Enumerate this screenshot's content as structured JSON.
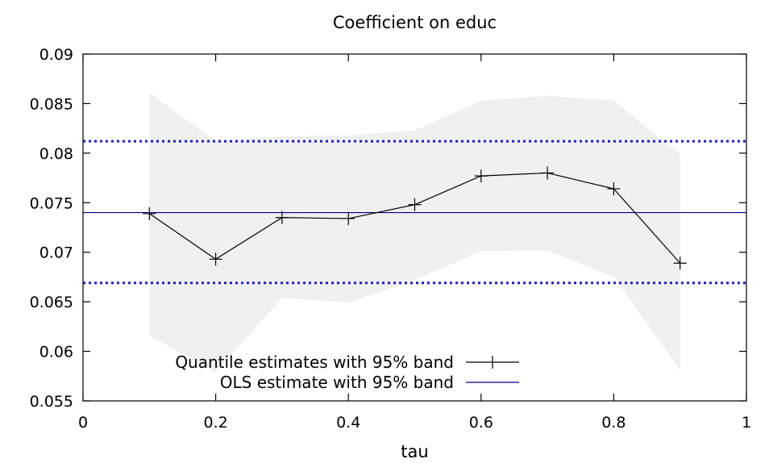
{
  "chart_data": {
    "type": "line",
    "title": "Coefficient on educ",
    "xlabel": "tau",
    "ylabel": "",
    "xlim": [
      0,
      1
    ],
    "ylim": [
      0.055,
      0.09
    ],
    "xticks": [
      0,
      0.2,
      0.4,
      0.6,
      0.8,
      1
    ],
    "xtick_labels": [
      "0",
      "0.2",
      "0.4",
      "0.6",
      "0.8",
      "1"
    ],
    "yticks": [
      0.055,
      0.06,
      0.065,
      0.07,
      0.075,
      0.08,
      0.085,
      0.09
    ],
    "ytick_labels": [
      "0.055",
      "0.06",
      "0.065",
      "0.07",
      "0.075",
      "0.08",
      "0.085",
      "0.09"
    ],
    "grid": false,
    "legend_position": "bottom-center",
    "series": [
      {
        "name": "Quantile estimates with 95% band",
        "x": [
          0.1,
          0.2,
          0.3,
          0.4,
          0.5,
          0.6,
          0.7,
          0.8,
          0.9
        ],
        "y": [
          0.0739,
          0.0693,
          0.0735,
          0.0734,
          0.0748,
          0.0777,
          0.078,
          0.0764,
          0.0689
        ],
        "lower": [
          0.0616,
          0.0579,
          0.0654,
          0.0649,
          0.0672,
          0.0701,
          0.0702,
          0.0675,
          0.0581
        ],
        "upper": [
          0.0861,
          0.0812,
          0.0817,
          0.0818,
          0.0823,
          0.0853,
          0.0858,
          0.0853,
          0.0799
        ],
        "color": "#000000",
        "band_color": "#f0f0f0",
        "marker": "plus"
      },
      {
        "name": "OLS estimate with 95% band",
        "value": 0.074,
        "lower": 0.0669,
        "upper": 0.0812,
        "color": "#00008b",
        "band_color": "#1a1adb",
        "band_style": "dotted"
      }
    ]
  }
}
